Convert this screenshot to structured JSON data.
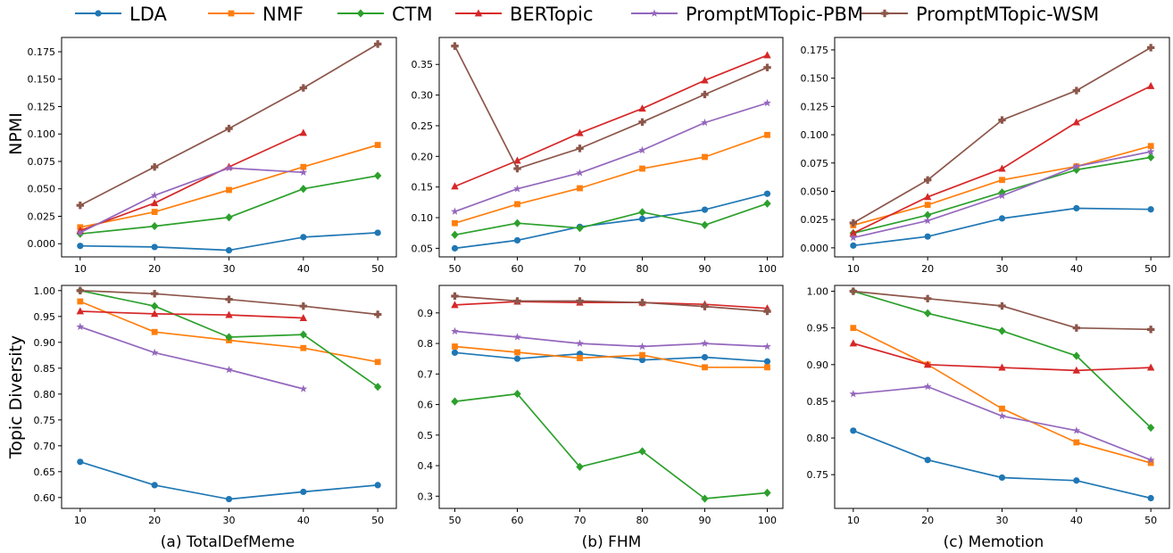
{
  "legend": [
    {
      "name": "LDA",
      "color": "#1f77b4",
      "marker": "circle"
    },
    {
      "name": "NMF",
      "color": "#ff7f0e",
      "marker": "square"
    },
    {
      "name": "CTM",
      "color": "#2ca02c",
      "marker": "diamond"
    },
    {
      "name": "BERTopic",
      "color": "#d62728",
      "marker": "triangle"
    },
    {
      "name": "PromptMTopic-PBM",
      "color": "#9467bd",
      "marker": "star"
    },
    {
      "name": "PromptMTopic-WSM",
      "color": "#8c564b",
      "marker": "plus"
    }
  ],
  "row_labels": [
    "NPMI",
    "Topic Diversity"
  ],
  "captions": [
    "(a) TotalDefMeme",
    "(b) FHM",
    "(c) Memotion"
  ],
  "chart_data": [
    {
      "type": "line",
      "dataset": "TotalDefMeme",
      "metric": "NPMI",
      "x": [
        10,
        20,
        30,
        40,
        50
      ],
      "xlim": [
        7.5,
        52.5
      ],
      "ylim": [
        -0.012,
        0.188
      ],
      "yticks": [
        "0.000",
        "0.025",
        "0.050",
        "0.075",
        "0.100",
        "0.125",
        "0.150",
        "0.175"
      ],
      "xticks": [
        "10",
        "20",
        "30",
        "40",
        "50"
      ],
      "series": [
        {
          "name": "LDA",
          "values": [
            -0.002,
            -0.003,
            -0.006,
            0.006,
            0.01
          ]
        },
        {
          "name": "NMF",
          "values": [
            0.015,
            0.029,
            0.049,
            0.07,
            0.09
          ]
        },
        {
          "name": "CTM",
          "values": [
            0.009,
            0.016,
            0.024,
            0.05,
            0.062
          ]
        },
        {
          "name": "BERTopic",
          "values": [
            0.012,
            0.037,
            0.07,
            0.101,
            null
          ]
        },
        {
          "name": "PromptMTopic-PBM",
          "values": [
            0.01,
            0.044,
            0.069,
            0.065,
            null
          ]
        },
        {
          "name": "PromptMTopic-WSM",
          "values": [
            0.035,
            0.07,
            0.105,
            0.142,
            0.182
          ]
        }
      ]
    },
    {
      "type": "line",
      "dataset": "FHM",
      "metric": "NPMI",
      "x": [
        50,
        60,
        70,
        80,
        90,
        100
      ],
      "xlim": [
        47.5,
        102.5
      ],
      "ylim": [
        0.036,
        0.394
      ],
      "yticks": [
        "0.05",
        "0.10",
        "0.15",
        "0.20",
        "0.25",
        "0.30",
        "0.35"
      ],
      "xticks": [
        "50",
        "60",
        "70",
        "80",
        "90",
        "100"
      ],
      "series": [
        {
          "name": "LDA",
          "values": [
            0.05,
            0.063,
            0.085,
            0.098,
            0.113,
            0.139
          ]
        },
        {
          "name": "NMF",
          "values": [
            0.091,
            0.122,
            0.148,
            0.18,
            0.199,
            0.235
          ]
        },
        {
          "name": "CTM",
          "values": [
            0.072,
            0.091,
            0.083,
            0.109,
            0.088,
            0.123
          ]
        },
        {
          "name": "BERTopic",
          "values": [
            0.151,
            0.193,
            0.238,
            0.278,
            0.324,
            0.365
          ]
        },
        {
          "name": "PromptMTopic-PBM",
          "values": [
            0.11,
            0.147,
            0.173,
            0.21,
            0.255,
            0.287
          ]
        },
        {
          "name": "PromptMTopic-WSM",
          "values": [
            0.38,
            0.18,
            0.213,
            0.256,
            0.301,
            0.345
          ]
        }
      ]
    },
    {
      "type": "line",
      "dataset": "Memotion",
      "metric": "NPMI",
      "x": [
        10,
        20,
        30,
        40,
        50
      ],
      "xlim": [
        7.5,
        52.5
      ],
      "ylim": [
        -0.008,
        0.186
      ],
      "yticks": [
        "0.000",
        "0.025",
        "0.050",
        "0.075",
        "0.100",
        "0.125",
        "0.150",
        "0.175"
      ],
      "xticks": [
        "10",
        "20",
        "30",
        "40",
        "50"
      ],
      "series": [
        {
          "name": "LDA",
          "values": [
            0.002,
            0.01,
            0.026,
            0.035,
            0.034
          ]
        },
        {
          "name": "NMF",
          "values": [
            0.02,
            0.038,
            0.06,
            0.072,
            0.09
          ]
        },
        {
          "name": "CTM",
          "values": [
            0.013,
            0.029,
            0.049,
            0.069,
            0.08
          ]
        },
        {
          "name": "BERTopic",
          "values": [
            0.013,
            0.045,
            0.07,
            0.111,
            0.143
          ]
        },
        {
          "name": "PromptMTopic-PBM",
          "values": [
            0.009,
            0.024,
            0.046,
            0.072,
            0.085
          ]
        },
        {
          "name": "PromptMTopic-WSM",
          "values": [
            0.022,
            0.06,
            0.113,
            0.139,
            0.177
          ]
        }
      ]
    },
    {
      "type": "line",
      "dataset": "TotalDefMeme",
      "metric": "Topic Diversity",
      "x": [
        10,
        20,
        30,
        40,
        50
      ],
      "xlim": [
        7.5,
        52.5
      ],
      "ylim": [
        0.579,
        1.01
      ],
      "yticks": [
        "0.60",
        "0.65",
        "0.70",
        "0.75",
        "0.80",
        "0.85",
        "0.90",
        "0.95",
        "1.00"
      ],
      "xticks": [
        "10",
        "20",
        "30",
        "40",
        "50"
      ],
      "series": [
        {
          "name": "LDA",
          "values": [
            0.669,
            0.624,
            0.597,
            0.611,
            0.624
          ]
        },
        {
          "name": "NMF",
          "values": [
            0.979,
            0.92,
            0.904,
            0.889,
            0.862
          ]
        },
        {
          "name": "CTM",
          "values": [
            1.0,
            0.97,
            0.91,
            0.915,
            0.814
          ]
        },
        {
          "name": "BERTopic",
          "values": [
            0.96,
            0.955,
            0.953,
            0.947,
            null
          ]
        },
        {
          "name": "PromptMTopic-PBM",
          "values": [
            0.93,
            0.88,
            0.847,
            0.81,
            null
          ]
        },
        {
          "name": "PromptMTopic-WSM",
          "values": [
            1.0,
            0.994,
            0.983,
            0.97,
            0.954
          ]
        }
      ]
    },
    {
      "type": "line",
      "dataset": "FHM",
      "metric": "Topic Diversity",
      "x": [
        50,
        60,
        70,
        80,
        90,
        100
      ],
      "xlim": [
        47.5,
        102.5
      ],
      "ylim": [
        0.26,
        0.99
      ],
      "yticks": [
        "0.3",
        "0.4",
        "0.5",
        "0.6",
        "0.7",
        "0.8",
        "0.9"
      ],
      "xticks": [
        "50",
        "60",
        "70",
        "80",
        "90",
        "100"
      ],
      "series": [
        {
          "name": "LDA",
          "values": [
            0.77,
            0.75,
            0.766,
            0.746,
            0.755,
            0.741
          ]
        },
        {
          "name": "NMF",
          "values": [
            0.79,
            0.771,
            0.752,
            0.762,
            0.722,
            0.722
          ]
        },
        {
          "name": "CTM",
          "values": [
            0.61,
            0.635,
            0.396,
            0.447,
            0.292,
            0.311
          ]
        },
        {
          "name": "BERTopic",
          "values": [
            0.926,
            0.937,
            0.934,
            0.934,
            0.928,
            0.915
          ]
        },
        {
          "name": "PromptMTopic-PBM",
          "values": [
            0.84,
            0.821,
            0.8,
            0.79,
            0.8,
            0.79
          ]
        },
        {
          "name": "PromptMTopic-WSM",
          "values": [
            0.955,
            0.939,
            0.939,
            0.934,
            0.921,
            0.905
          ]
        }
      ]
    },
    {
      "type": "line",
      "dataset": "Memotion",
      "metric": "Topic Diversity",
      "x": [
        10,
        20,
        30,
        40,
        50
      ],
      "xlim": [
        7.5,
        52.5
      ],
      "ylim": [
        0.704,
        1.008
      ],
      "yticks": [
        "0.75",
        "0.80",
        "0.85",
        "0.90",
        "0.95",
        "1.00"
      ],
      "xticks": [
        "10",
        "20",
        "30",
        "40",
        "50"
      ],
      "series": [
        {
          "name": "LDA",
          "values": [
            0.81,
            0.77,
            0.746,
            0.742,
            0.718
          ]
        },
        {
          "name": "NMF",
          "values": [
            0.95,
            0.9,
            0.84,
            0.794,
            0.766
          ]
        },
        {
          "name": "CTM",
          "values": [
            1.0,
            0.97,
            0.946,
            0.912,
            0.814
          ]
        },
        {
          "name": "BERTopic",
          "values": [
            0.929,
            0.9,
            0.896,
            0.892,
            0.896
          ]
        },
        {
          "name": "PromptMTopic-PBM",
          "values": [
            0.86,
            0.87,
            0.83,
            0.81,
            0.77
          ]
        },
        {
          "name": "PromptMTopic-WSM",
          "values": [
            1.0,
            0.99,
            0.98,
            0.95,
            0.948
          ]
        }
      ]
    }
  ]
}
